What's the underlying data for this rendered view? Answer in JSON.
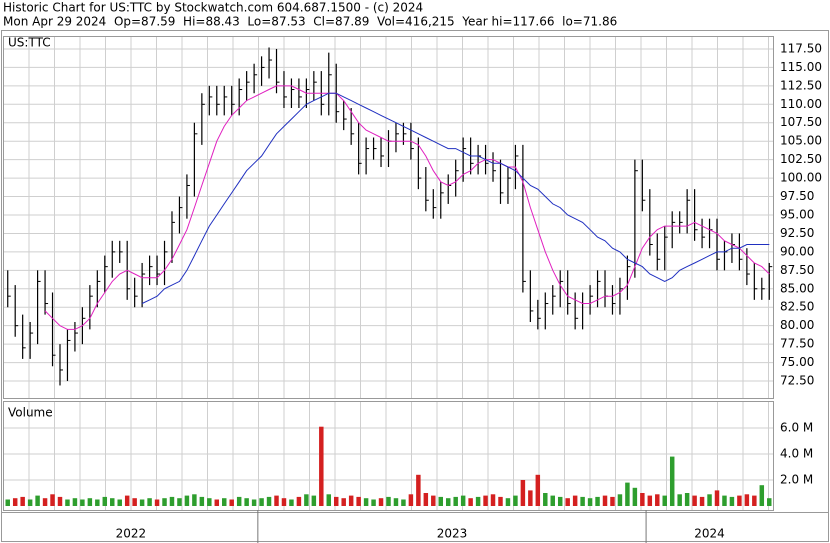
{
  "header": {
    "line1": "Historic Chart for US:TTC by Stockwatch.com 604.687.1500 - (c) 2024",
    "line2": "Mon Apr 29 2024  Op=87.59  Hi=88.43  Lo=87.53  Cl=87.89  Vol=416,215  Year hi=117.66  lo=71.86"
  },
  "chart_data": [
    {
      "type": "hlc",
      "label": "US:TTC",
      "color": "#000000",
      "categories": [
        "2022",
        null,
        null,
        null,
        null,
        null,
        null,
        null,
        null,
        null,
        null,
        null,
        null,
        null,
        null,
        null,
        null,
        null,
        null,
        null,
        null,
        null,
        null,
        null,
        null,
        null,
        null,
        null,
        null,
        null,
        null,
        null,
        null,
        null,
        "2023",
        null,
        null,
        null,
        null,
        null,
        null,
        null,
        null,
        null,
        null,
        null,
        null,
        null,
        null,
        null,
        null,
        null,
        null,
        null,
        null,
        null,
        null,
        null,
        null,
        null,
        null,
        null,
        null,
        null,
        null,
        null,
        null,
        null,
        null,
        null,
        null,
        null,
        null,
        null,
        null,
        null,
        null,
        null,
        null,
        null,
        null,
        null,
        null,
        null,
        null,
        null,
        "2024",
        null,
        null,
        null,
        null,
        null,
        null,
        null,
        null,
        null,
        null,
        null,
        null,
        null,
        null,
        null,
        null
      ],
      "high": [
        87.5,
        85.5,
        81.5,
        80.5,
        87.5,
        87.5,
        84.5,
        77.5,
        79.5,
        80.5,
        82.5,
        85.5,
        87.5,
        89.5,
        91.5,
        91.5,
        91.5,
        86.5,
        88.5,
        89.5,
        89.5,
        91.5,
        95.5,
        97.5,
        100.5,
        107.5,
        111.5,
        112.5,
        112.5,
        112.5,
        112.5,
        113.5,
        114.5,
        115.5,
        116.5,
        117.7,
        117.5,
        114.5,
        113.5,
        113.5,
        113.5,
        114.5,
        114.5,
        117.0,
        115.5,
        110.5,
        109.5,
        107.5,
        105.5,
        105.5,
        105.5,
        106.5,
        107.5,
        107.5,
        107.5,
        105.5,
        101.5,
        98.5,
        99.5,
        100.5,
        102.5,
        105.5,
        105.5,
        104.5,
        104.5,
        103.5,
        102.5,
        101.5,
        104.5,
        104.5,
        87.5,
        83.5,
        84.5,
        85.5,
        87.5,
        87.5,
        84.5,
        84.5,
        85.5,
        87.5,
        87.5,
        85.5,
        86.5,
        89.5,
        102.5,
        102.5,
        98.5,
        92.5,
        93.5,
        95.5,
        95.5,
        98.5,
        98.5,
        94.5,
        94.5,
        94.5,
        91.5,
        92.5,
        92.5,
        90.5,
        88.5,
        86.5,
        88.5
      ],
      "low": [
        82.5,
        78.5,
        75.5,
        75.5,
        77.5,
        81.5,
        74.5,
        71.9,
        72.5,
        76.5,
        77.5,
        79.5,
        82.5,
        84.5,
        86.5,
        88.5,
        83.5,
        82.5,
        82.5,
        85.5,
        85.5,
        85.5,
        88.5,
        92.5,
        94.5,
        97.5,
        104.5,
        108.5,
        108.5,
        108.5,
        108.5,
        108.5,
        110.5,
        111.5,
        112.5,
        113.5,
        111.5,
        109.5,
        109.5,
        109.5,
        109.5,
        110.5,
        108.5,
        108.5,
        107.5,
        106.5,
        104.5,
        100.5,
        100.5,
        102.5,
        101.5,
        101.5,
        103.5,
        104.5,
        102.5,
        98.5,
        95.5,
        94.5,
        94.5,
        96.5,
        97.5,
        99.5,
        100.5,
        100.5,
        100.5,
        99.5,
        96.5,
        96.5,
        98.5,
        84.5,
        80.5,
        79.5,
        79.5,
        81.5,
        82.5,
        81.5,
        79.5,
        79.5,
        81.5,
        82.5,
        82.5,
        81.5,
        81.5,
        83.5,
        86.5,
        95.5,
        89.5,
        87.5,
        87.5,
        90.5,
        92.5,
        92.5,
        91.5,
        90.5,
        90.5,
        87.5,
        87.5,
        88.5,
        87.5,
        85.5,
        83.5,
        83.5,
        83.5
      ],
      "close": [
        84,
        80,
        77,
        79,
        86,
        83,
        76,
        74,
        78,
        79,
        81,
        84,
        86,
        88,
        90,
        90,
        85,
        84,
        87,
        88,
        87,
        90,
        94,
        96,
        99,
        106,
        110,
        111,
        110,
        111,
        110,
        112,
        113,
        114,
        115,
        116,
        113,
        111,
        112,
        111,
        112,
        113,
        110,
        114,
        109,
        108,
        106,
        102,
        104,
        104,
        103,
        105,
        106,
        106,
        104,
        100,
        97,
        96,
        98,
        99,
        101,
        104,
        102,
        103,
        102,
        101,
        98,
        100,
        103,
        86,
        82,
        81,
        83,
        84,
        86,
        83,
        81,
        83,
        84,
        86,
        84,
        83,
        85,
        88,
        101,
        97,
        91,
        89,
        92,
        94,
        94,
        97,
        93,
        92,
        93,
        89,
        90,
        91,
        89,
        87,
        85,
        85,
        88
      ],
      "moving_averages": [
        {
          "color": "#e020c0",
          "values": [
            null,
            null,
            null,
            null,
            null,
            82,
            81,
            80,
            79.5,
            79.5,
            80,
            81,
            83,
            84.5,
            86,
            87,
            87.5,
            87,
            86.5,
            86.5,
            86.5,
            87.5,
            89,
            91,
            93,
            96,
            99,
            102,
            105,
            107,
            108.5,
            109.5,
            110.5,
            111,
            111.5,
            112,
            112.5,
            112.5,
            112.5,
            112,
            111.5,
            111.5,
            111.5,
            111.5,
            111.5,
            110.5,
            109,
            107.5,
            106.5,
            106,
            105.5,
            105,
            105,
            105,
            105,
            104.5,
            103,
            101,
            99.5,
            99,
            99.5,
            100.5,
            101,
            102,
            102.5,
            102.5,
            102,
            101.5,
            101.5,
            99.5,
            96,
            93,
            90,
            87.5,
            85.5,
            84,
            83.5,
            83,
            83,
            83.5,
            84,
            84,
            84.5,
            85.5,
            88,
            90.5,
            92,
            93,
            93.5,
            93.5,
            93.5,
            93.5,
            94,
            93.5,
            93,
            92.5,
            91.5,
            91,
            90.5,
            89.5,
            88.5,
            88,
            87
          ]
        },
        {
          "color": "#2030c0",
          "values": [
            null,
            null,
            null,
            null,
            null,
            null,
            null,
            null,
            null,
            null,
            null,
            null,
            null,
            null,
            null,
            null,
            null,
            null,
            83,
            83.5,
            84,
            85,
            85.5,
            86,
            87.5,
            89.5,
            91.5,
            93.5,
            95,
            96.5,
            98,
            99.5,
            101,
            102,
            103,
            104.5,
            106,
            107,
            108,
            109,
            110,
            110.5,
            111,
            111.5,
            111.5,
            111,
            110.5,
            110,
            109.5,
            109,
            108.5,
            108,
            107.5,
            107,
            106.5,
            106,
            105.5,
            105,
            104.5,
            104,
            104,
            103.5,
            103,
            103,
            102.5,
            102,
            102,
            101.5,
            101,
            100,
            99,
            98.5,
            97.5,
            96.5,
            96,
            95,
            94.5,
            94,
            93,
            92,
            91.5,
            90.5,
            90,
            89,
            88.5,
            88,
            87,
            86.5,
            86,
            86.5,
            87.5,
            88,
            88.5,
            89,
            89.5,
            90,
            90,
            90.5,
            90.5,
            91,
            91,
            91,
            91
          ]
        }
      ],
      "ylim": [
        70.2,
        119.12
      ],
      "yticks": [
        {
          "value": 72.5,
          "label": "72.50"
        },
        {
          "value": 75,
          "label": "75.00"
        },
        {
          "value": 77.5,
          "label": "77.50"
        },
        {
          "value": 80,
          "label": "80.00"
        },
        {
          "value": 82.5,
          "label": "82.50"
        },
        {
          "value": 85,
          "label": "85.00"
        },
        {
          "value": 87.5,
          "label": "87.50"
        },
        {
          "value": 90,
          "label": "90.00"
        },
        {
          "value": 92.5,
          "label": "92.50"
        },
        {
          "value": 95,
          "label": "95.00"
        },
        {
          "value": 97.5,
          "label": "97.50"
        },
        {
          "value": 100,
          "label": "100.00"
        },
        {
          "value": 102.5,
          "label": "102.50"
        },
        {
          "value": 105,
          "label": "105.00"
        },
        {
          "value": 107.5,
          "label": "107.50"
        },
        {
          "value": 110,
          "label": "110.00"
        },
        {
          "value": 112.5,
          "label": "112.50"
        },
        {
          "value": 115,
          "label": "115.00"
        },
        {
          "value": 117.5,
          "label": "117.50"
        }
      ],
      "grid": true
    },
    {
      "type": "bar",
      "label": "Volume",
      "up_color": "#2e9e2e",
      "down_color": "#d42020",
      "values": [
        0.5,
        0.6,
        0.7,
        0.5,
        0.8,
        0.6,
        0.9,
        0.7,
        0.5,
        0.6,
        0.5,
        0.6,
        0.5,
        0.7,
        0.6,
        0.5,
        0.8,
        0.6,
        0.5,
        0.6,
        0.5,
        0.6,
        0.7,
        0.6,
        0.8,
        0.9,
        0.7,
        0.6,
        0.5,
        0.6,
        0.5,
        0.7,
        0.6,
        0.5,
        0.6,
        0.7,
        0.8,
        0.6,
        0.5,
        0.7,
        0.9,
        0.8,
        6.1,
        0.9,
        0.7,
        0.6,
        0.8,
        0.7,
        0.6,
        0.5,
        0.6,
        0.7,
        0.6,
        0.5,
        0.9,
        2.4,
        1.0,
        0.8,
        0.7,
        0.6,
        0.7,
        0.8,
        0.6,
        0.7,
        0.8,
        0.9,
        0.7,
        0.6,
        0.8,
        2.0,
        1.2,
        2.4,
        1.0,
        0.8,
        0.7,
        0.6,
        0.8,
        0.7,
        0.6,
        0.7,
        0.8,
        0.7,
        0.9,
        1.8,
        1.4,
        1.0,
        0.8,
        0.9,
        0.8,
        3.8,
        0.9,
        1.0,
        0.8,
        0.7,
        0.9,
        1.2,
        0.8,
        0.7,
        0.8,
        0.9,
        0.8,
        1.6,
        0.6
      ],
      "ylim": [
        0,
        8
      ],
      "yticks": [
        {
          "value": 2,
          "label": "2.0 M"
        },
        {
          "value": 4,
          "label": "4.0 M"
        },
        {
          "value": 6,
          "label": "6.0 M"
        }
      ],
      "grid": true
    }
  ]
}
